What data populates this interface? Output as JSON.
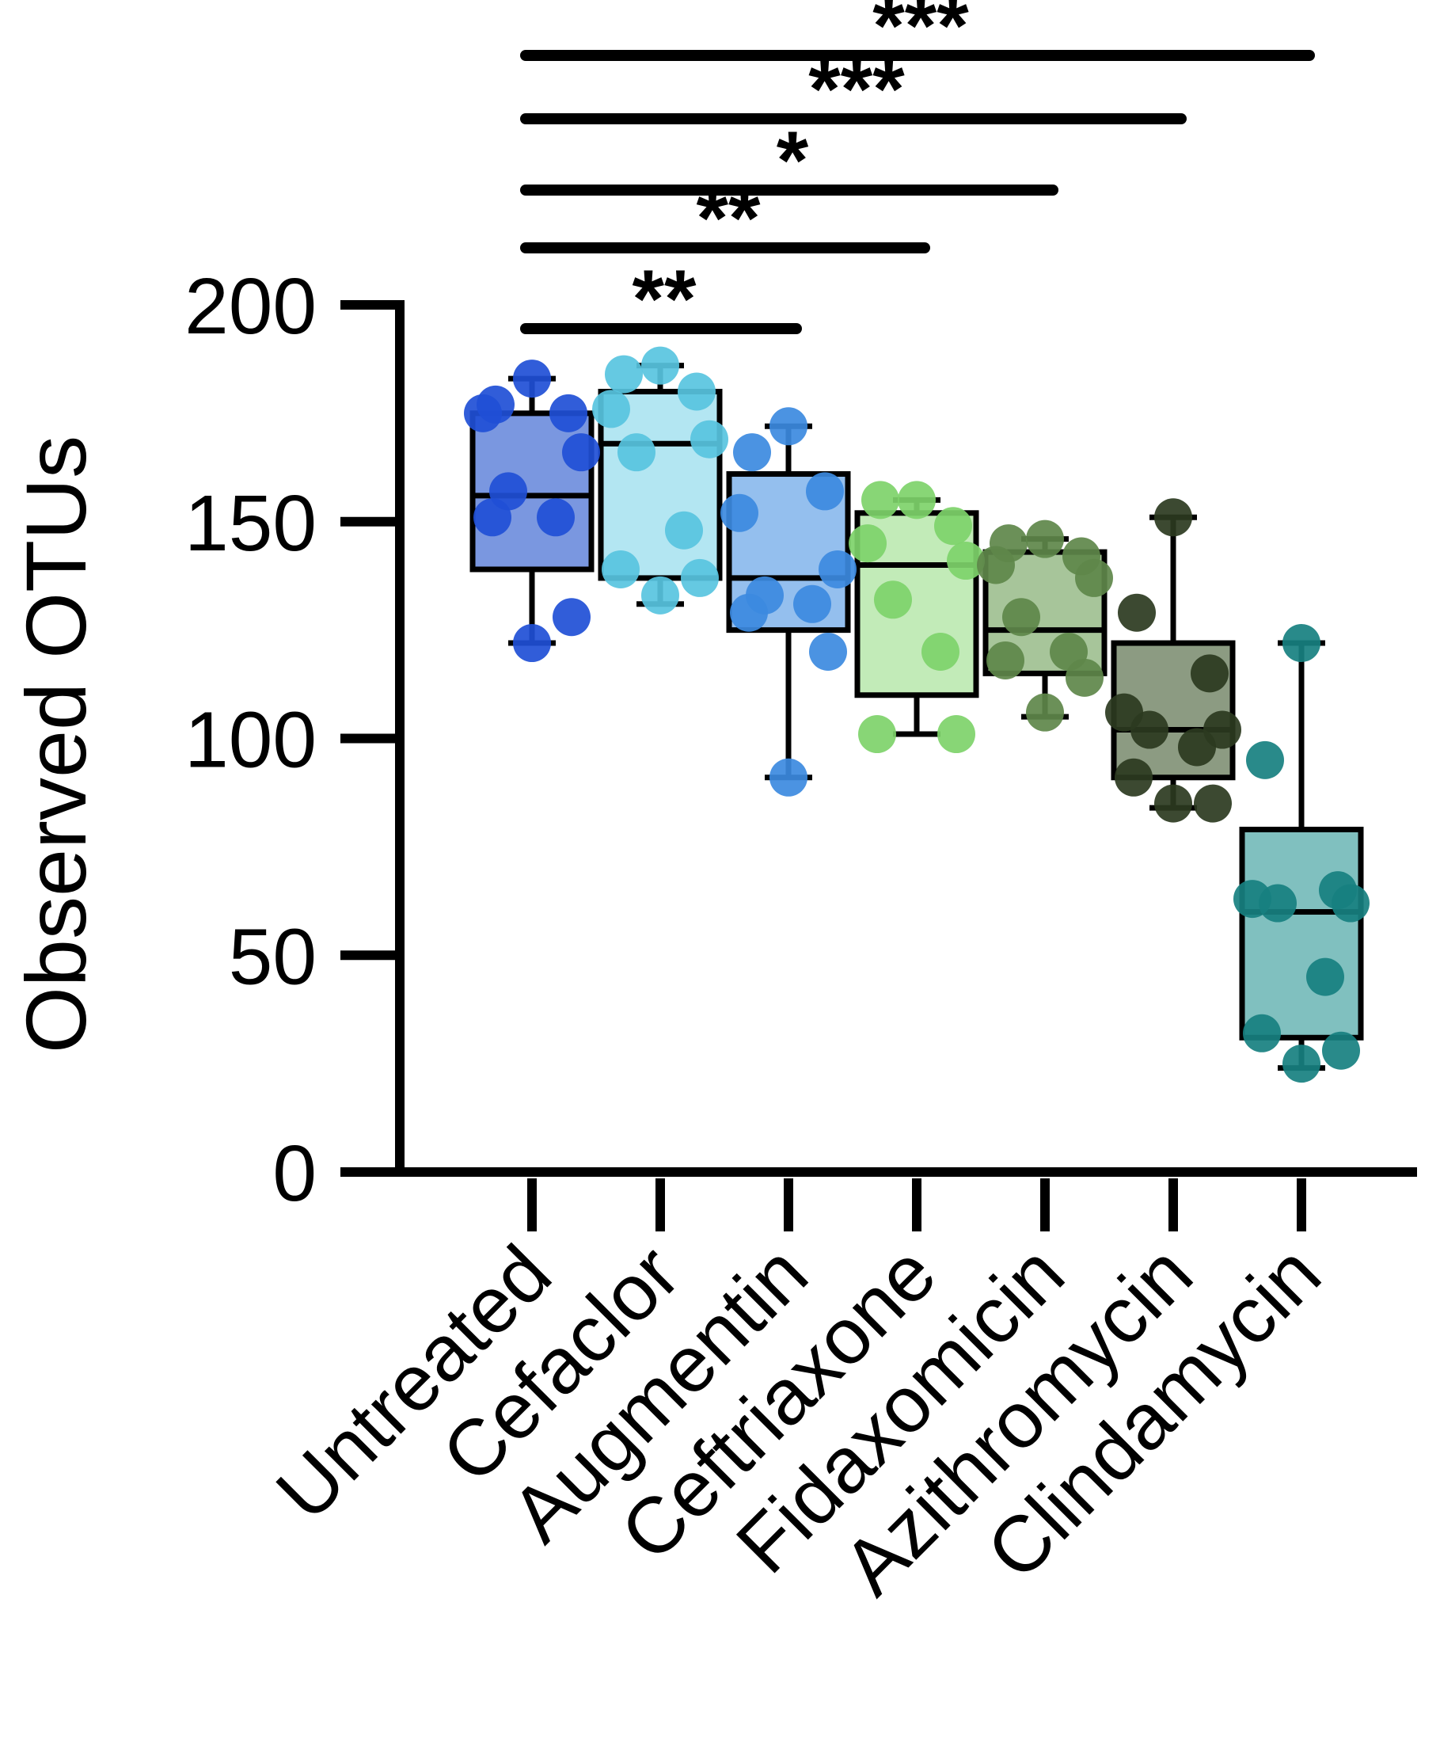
{
  "chart_data": {
    "type": "box",
    "ylabel": "Observed OTUs",
    "xlabel": "",
    "ylim": [
      0,
      200
    ],
    "yticks": [
      "0",
      "50",
      "100",
      "150",
      "200"
    ],
    "categories": [
      "Untreated",
      "Cefaclor",
      "Augmentin",
      "Ceftriaxone",
      "Fidaxomicin",
      "Azithromycin",
      "Clindamycin"
    ],
    "series": [
      {
        "category": "Untreated",
        "color": "#1f4fd6",
        "box_fill": "#7a97e0",
        "min": 122,
        "q1": 139,
        "median": 156,
        "q3": 175,
        "max": 183,
        "points": [
          183,
          177,
          175,
          175,
          166,
          157,
          151,
          151,
          128,
          122
        ]
      },
      {
        "category": "Cefaclor",
        "color": "#58c4e0",
        "box_fill": "#b3e6f2",
        "min": 131,
        "q1": 137,
        "median": 168,
        "q3": 180,
        "max": 186,
        "points": [
          186,
          184,
          180,
          176,
          169,
          166,
          148,
          139,
          137,
          133
        ]
      },
      {
        "category": "Augmentin",
        "color": "#3c8ae0",
        "box_fill": "#94bfee",
        "min": 91,
        "q1": 125,
        "median": 137,
        "q3": 161,
        "max": 172,
        "points": [
          172,
          166,
          157,
          152,
          139,
          133,
          131,
          129,
          120,
          91
        ]
      },
      {
        "category": "Ceftriaxone",
        "color": "#7ed36a",
        "box_fill": "#c2ebb8",
        "min": 101,
        "q1": 110,
        "median": 140,
        "q3": 152,
        "max": 155,
        "points": [
          155,
          155,
          149,
          145,
          141,
          132,
          120,
          101,
          101
        ]
      },
      {
        "category": "Fidaxomicin",
        "color": "#5e874a",
        "box_fill": "#a7c59a",
        "min": 105,
        "q1": 115,
        "median": 125,
        "q3": 143,
        "max": 146,
        "points": [
          146,
          145,
          142,
          140,
          137,
          128,
          120,
          118,
          114,
          106
        ]
      },
      {
        "category": "Azithromycin",
        "color": "#2b3a20",
        "box_fill": "#8c9b82",
        "min": 84,
        "q1": 91,
        "median": 102,
        "q3": 122,
        "max": 151,
        "points": [
          151,
          129,
          115,
          106,
          102,
          102,
          98,
          91,
          85,
          85
        ]
      },
      {
        "category": "Clindamycin",
        "color": "#178080",
        "box_fill": "#80c0bf",
        "min": 24,
        "q1": 31,
        "median": 60,
        "q3": 79,
        "max": 122,
        "points": [
          122,
          95,
          65,
          63,
          62,
          62,
          45,
          32,
          28,
          25
        ]
      }
    ],
    "significance": [
      {
        "from": "Untreated",
        "to": "Augmentin",
        "label": "**"
      },
      {
        "from": "Untreated",
        "to": "Ceftriaxone",
        "label": "**"
      },
      {
        "from": "Untreated",
        "to": "Fidaxomicin",
        "label": "*"
      },
      {
        "from": "Untreated",
        "to": "Azithromycin",
        "label": "***"
      },
      {
        "from": "Untreated",
        "to": "Clindamycin",
        "label": "***"
      }
    ],
    "grid": false,
    "legend": "none"
  }
}
